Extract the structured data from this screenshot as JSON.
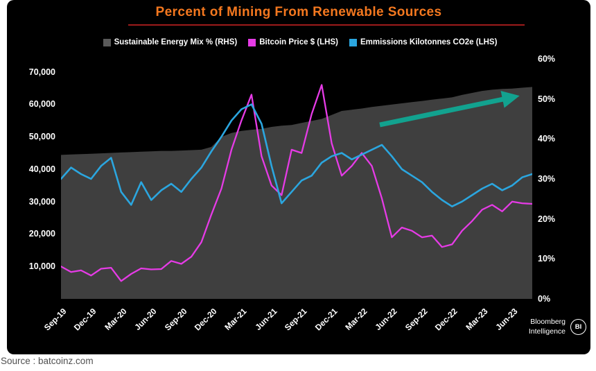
{
  "title": "Percent of Mining From Renewable Sources",
  "source": "Source : batcoinz.com",
  "branding": {
    "line1": "Bloomberg",
    "line2": "Intelligence",
    "logo": "BI"
  },
  "legend": [
    {
      "label": "Sustainable Energy Mix % (RHS)",
      "color": "#5A5A5A"
    },
    {
      "label": "Bitcoin Price $ (LHS)",
      "color": "#E63BE6"
    },
    {
      "label": "Emmissions Kilotonnes CO2e (LHS)",
      "color": "#2BA6DF"
    }
  ],
  "chart_data": {
    "type": "mixed",
    "title": "Percent of Mining From Renewable Sources",
    "grid": false,
    "legend_position": "top",
    "months": [
      "Sep-19",
      "Oct-19",
      "Nov-19",
      "Dec-19",
      "Jan-20",
      "Feb-20",
      "Mar-20",
      "Apr-20",
      "May-20",
      "Jun-20",
      "Jul-20",
      "Aug-20",
      "Sep-20",
      "Oct-20",
      "Nov-20",
      "Dec-20",
      "Jan-21",
      "Feb-21",
      "Mar-21",
      "Apr-21",
      "May-21",
      "Jun-21",
      "Jul-21",
      "Aug-21",
      "Sep-21",
      "Oct-21",
      "Nov-21",
      "Dec-21",
      "Jan-22",
      "Feb-22",
      "Mar-22",
      "Apr-22",
      "May-22",
      "Jun-22",
      "Jul-22",
      "Aug-22",
      "Sep-22",
      "Oct-22",
      "Nov-22",
      "Dec-22",
      "Jan-23",
      "Feb-23",
      "Mar-23",
      "Apr-23",
      "May-23",
      "Jun-23",
      "Jul-23",
      "Aug-23"
    ],
    "x_ticks": [
      "Sep-19",
      "Dec-19",
      "Mar-20",
      "Jun-20",
      "Sep-20",
      "Dec-20",
      "Mar-21",
      "Jun-21",
      "Sep-21",
      "Dec-21",
      "Mar-22",
      "Jun-22",
      "Sep-22",
      "Dec-22",
      "Mar-23",
      "Jun-23"
    ],
    "ylim_left": [
      0,
      74000
    ],
    "ylim_right": [
      0,
      60
    ],
    "left_ticks": [
      "70,000",
      "60,000",
      "50,000",
      "40,000",
      "30,000",
      "20,000",
      "10,000"
    ],
    "left_tick_values": [
      70000,
      60000,
      50000,
      40000,
      30000,
      20000,
      10000
    ],
    "right_ticks": [
      "60%",
      "50%",
      "40%",
      "30%",
      "20%",
      "10%",
      "0%"
    ],
    "right_tick_values": [
      60,
      50,
      40,
      30,
      20,
      10,
      0
    ],
    "series": [
      {
        "id": "sustainable-energy-mix",
        "name": "Sustainable Energy Mix % (RHS)",
        "type": "area",
        "axis": "right",
        "unit": "%",
        "color": "#3F3F3F",
        "values": [
          36.0,
          36.1,
          36.2,
          36.3,
          36.4,
          36.5,
          36.6,
          36.7,
          36.8,
          36.9,
          37.0,
          37.0,
          37.1,
          37.2,
          37.3,
          38.0,
          40.5,
          41.5,
          42.0,
          42.3,
          42.5,
          43.0,
          43.3,
          43.5,
          44.0,
          44.5,
          45.0,
          46.0,
          47.0,
          47.3,
          47.6,
          48.0,
          48.3,
          48.6,
          48.9,
          49.2,
          49.5,
          49.8,
          50.1,
          50.4,
          51.0,
          51.5,
          52.0,
          52.3,
          52.5,
          52.6,
          52.8,
          53.0
        ]
      },
      {
        "id": "bitcoin-price",
        "name": "Bitcoin Price $ (LHS)",
        "type": "line",
        "axis": "left",
        "unit": "$",
        "color": "#E63BE6",
        "width": 2.3,
        "values": [
          10000,
          8300,
          8800,
          7200,
          9300,
          9600,
          5500,
          7700,
          9400,
          9100,
          9200,
          11700,
          10800,
          13000,
          17500,
          26000,
          34000,
          46000,
          55000,
          63000,
          44000,
          35000,
          32000,
          46000,
          45000,
          57000,
          66000,
          48000,
          38000,
          41000,
          45000,
          41000,
          31000,
          19000,
          22000,
          21000,
          19000,
          19500,
          16000,
          16800,
          21000,
          24000,
          27500,
          29000,
          27000,
          30000,
          29500,
          29300
        ]
      },
      {
        "id": "emissions",
        "name": "Emmissions Kilotonnes CO2e (LHS)",
        "type": "line",
        "axis": "left",
        "unit": "kt CO2e",
        "color": "#2BA6DF",
        "width": 2.6,
        "values": [
          37000,
          40500,
          38500,
          37000,
          41000,
          43500,
          33000,
          29000,
          36000,
          30500,
          33500,
          35500,
          33000,
          37000,
          40500,
          45500,
          50000,
          55000,
          58500,
          60000,
          54000,
          41000,
          29500,
          33000,
          36500,
          38000,
          42000,
          44000,
          45000,
          43000,
          44500,
          46000,
          47500,
          44000,
          40000,
          38000,
          36000,
          33000,
          30500,
          28500,
          30000,
          32000,
          34000,
          35500,
          33500,
          35000,
          37500,
          38500
        ]
      }
    ],
    "annotation": {
      "type": "trend-arrow",
      "color": "#12A28F",
      "x1": 460,
      "y1": 95,
      "x2": 648,
      "y2": 56
    }
  }
}
